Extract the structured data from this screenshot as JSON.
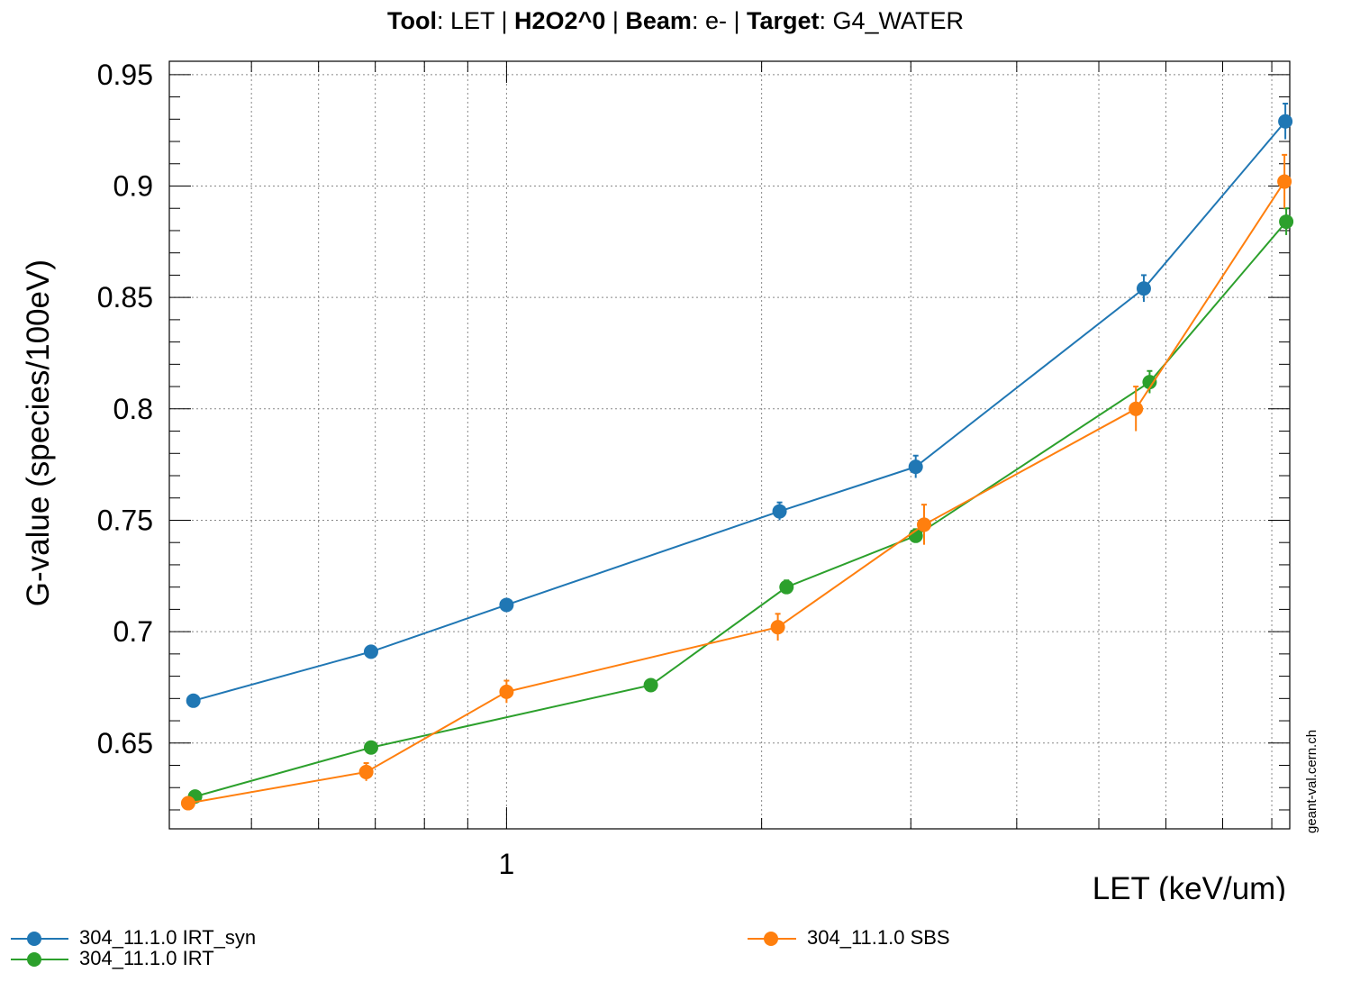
{
  "title": {
    "tool_key": "Tool",
    "tool_val": ": LET | ",
    "species": "H2O2^0",
    "sep": " | ",
    "beam_key": "Beam",
    "beam_val": ": e- | ",
    "target_key": "Target",
    "target_val": ": G4_WATER"
  },
  "watermark": "geant-val.cern.ch",
  "chart_data": {
    "type": "line",
    "xlabel": "LET (keV/um)",
    "ylabel": "G-value (species/100eV)",
    "x_scale": "log",
    "xlim": [
      0.4,
      8.4
    ],
    "ylim": [
      0.6115,
      0.956
    ],
    "x_tick_labels": [
      {
        "value": 1,
        "label": "1"
      }
    ],
    "y_ticks": [
      0.65,
      0.7,
      0.75,
      0.8,
      0.85,
      0.9,
      0.95
    ],
    "y_tick_labels": [
      "0.65",
      "0.7",
      "0.75",
      "0.8",
      "0.85",
      "0.9",
      "0.95"
    ],
    "grid": true,
    "legend_position": "bottom",
    "series": [
      {
        "name": "304_11.1.0 IRT_syn",
        "color": "#2077b4",
        "x": [
          0.427,
          0.692,
          1.0,
          2.1,
          3.04,
          5.65,
          8.3
        ],
        "y": [
          0.669,
          0.691,
          0.712,
          0.754,
          0.774,
          0.854,
          0.929
        ],
        "err": [
          0.002,
          0.002,
          0.002,
          0.004,
          0.005,
          0.006,
          0.008
        ]
      },
      {
        "name": "304_11.1.0 IRT",
        "color": "#2ca02c",
        "x": [
          0.429,
          0.692,
          1.48,
          2.14,
          3.04,
          5.74,
          8.32
        ],
        "y": [
          0.626,
          0.648,
          0.676,
          0.72,
          0.743,
          0.812,
          0.884
        ],
        "err": [
          0.002,
          0.002,
          0.002,
          0.003,
          0.003,
          0.005,
          0.006
        ]
      },
      {
        "name": "304_11.1.0 SBS",
        "color": "#ff7f0e",
        "x": [
          0.421,
          0.683,
          1.0,
          2.09,
          3.11,
          5.53,
          8.28
        ],
        "y": [
          0.623,
          0.637,
          0.673,
          0.702,
          0.748,
          0.8,
          0.902
        ],
        "err": [
          0.002,
          0.004,
          0.005,
          0.006,
          0.009,
          0.01,
          0.012
        ]
      }
    ]
  }
}
